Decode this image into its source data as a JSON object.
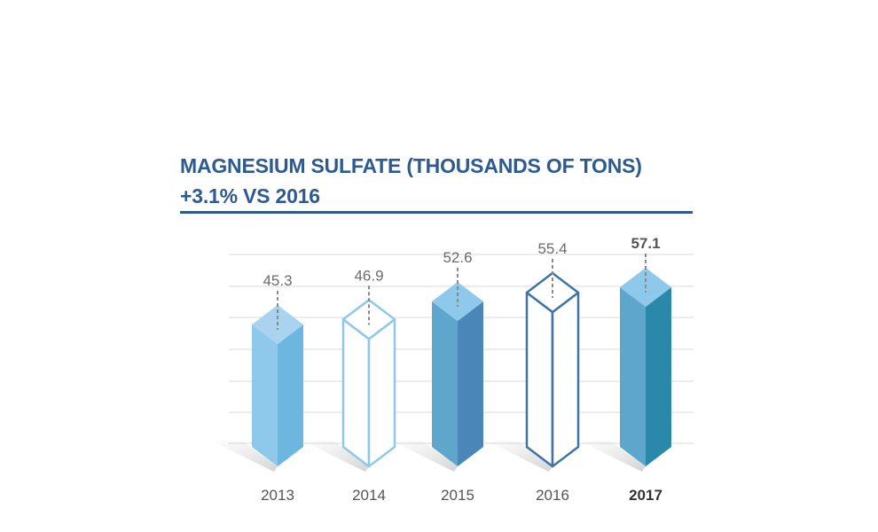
{
  "title_line1": "MAGNESIUM SULFATE (THOUSANDS OF TONS)",
  "title_line2": "+3.1% VS 2016",
  "colors": {
    "title": "#2e5a92",
    "grid": "#d9d9d9"
  },
  "chart_data": {
    "type": "bar",
    "categories": [
      "2013",
      "2014",
      "2015",
      "2016",
      "2017"
    ],
    "values": [
      45.3,
      46.9,
      52.6,
      55.4,
      57.1
    ],
    "value_labels": [
      "45.3",
      "46.9",
      "52.6",
      "55.4",
      "57.1"
    ],
    "highlight": "2017",
    "grid": true,
    "bar_styles": [
      {
        "style": "filled",
        "top": "#a9d3ee",
        "left": "#8ec8ea",
        "right": "#6db6e0",
        "stroke": "none"
      },
      {
        "style": "outline",
        "top": "#ffffff",
        "left": "#ffffff",
        "right": "#ffffff",
        "stroke": "#8ec8ea"
      },
      {
        "style": "filled",
        "top": "#8ec8ea",
        "left": "#5fa6cc",
        "right": "#4a86b8",
        "stroke": "none"
      },
      {
        "style": "outline",
        "top": "#ffffff",
        "left": "#ffffff",
        "right": "#ffffff",
        "stroke": "#3f74a8"
      },
      {
        "style": "filled",
        "top": "#8ec8ea",
        "left": "#5fa6cc",
        "right": "#2a88aa",
        "stroke": "none"
      }
    ]
  }
}
